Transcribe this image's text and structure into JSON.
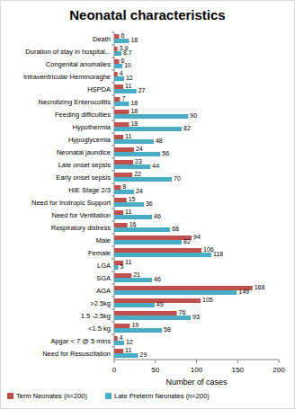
{
  "chart_data": {
    "type": "bar",
    "orientation": "horizontal",
    "title": "Neonatal characteristics",
    "x_label": "Number of cases",
    "categories": [
      "Death",
      "Duration of stay in hospital...",
      "Congenital anomalies",
      "Intraventricular Hemmoraghe",
      "HSPDA",
      "Necrotizing Enterocolitis",
      "Feeding difficulties",
      "Hypothermia",
      "Hypoglycemia",
      "Neonatal jaundice",
      "Late onset sepsis",
      "Early onset sepsis",
      "HIE Stage 2/3",
      "Need for Inotropic Support",
      "Need for Ventilation",
      "Respiratory distress",
      "Male",
      "Female",
      "LGA",
      "SGA",
      "AGA",
      ">2.5kg",
      "1.5 -2.5kg",
      "<1.5 kg",
      "Apgar < 7 @ 5 mins",
      "Need for Resuscitation"
    ],
    "series": [
      {
        "name": "Term Neonates (n=200)",
        "color": "#c0504d",
        "values": [
          6,
          3.9,
          6,
          4,
          11,
          7,
          18,
          18,
          11,
          24,
          23,
          22,
          8,
          15,
          11,
          16,
          94,
          106,
          11,
          21,
          168,
          105,
          76,
          19,
          4,
          11
        ]
      },
      {
        "name": "Late Preterm Neonates (n=200)",
        "color": "#4bacc6",
        "values": [
          18,
          8.7,
          10,
          12,
          27,
          18,
          90,
          82,
          48,
          56,
          44,
          70,
          24,
          36,
          46,
          68,
          82,
          118,
          5,
          46,
          149,
          49,
          93,
          58,
          12,
          29
        ]
      }
    ],
    "xlim": [
      0,
      200
    ],
    "xticks": [
      0,
      50,
      100,
      150,
      200
    ],
    "grid": false,
    "legend": "bottom",
    "data_labels": true
  }
}
